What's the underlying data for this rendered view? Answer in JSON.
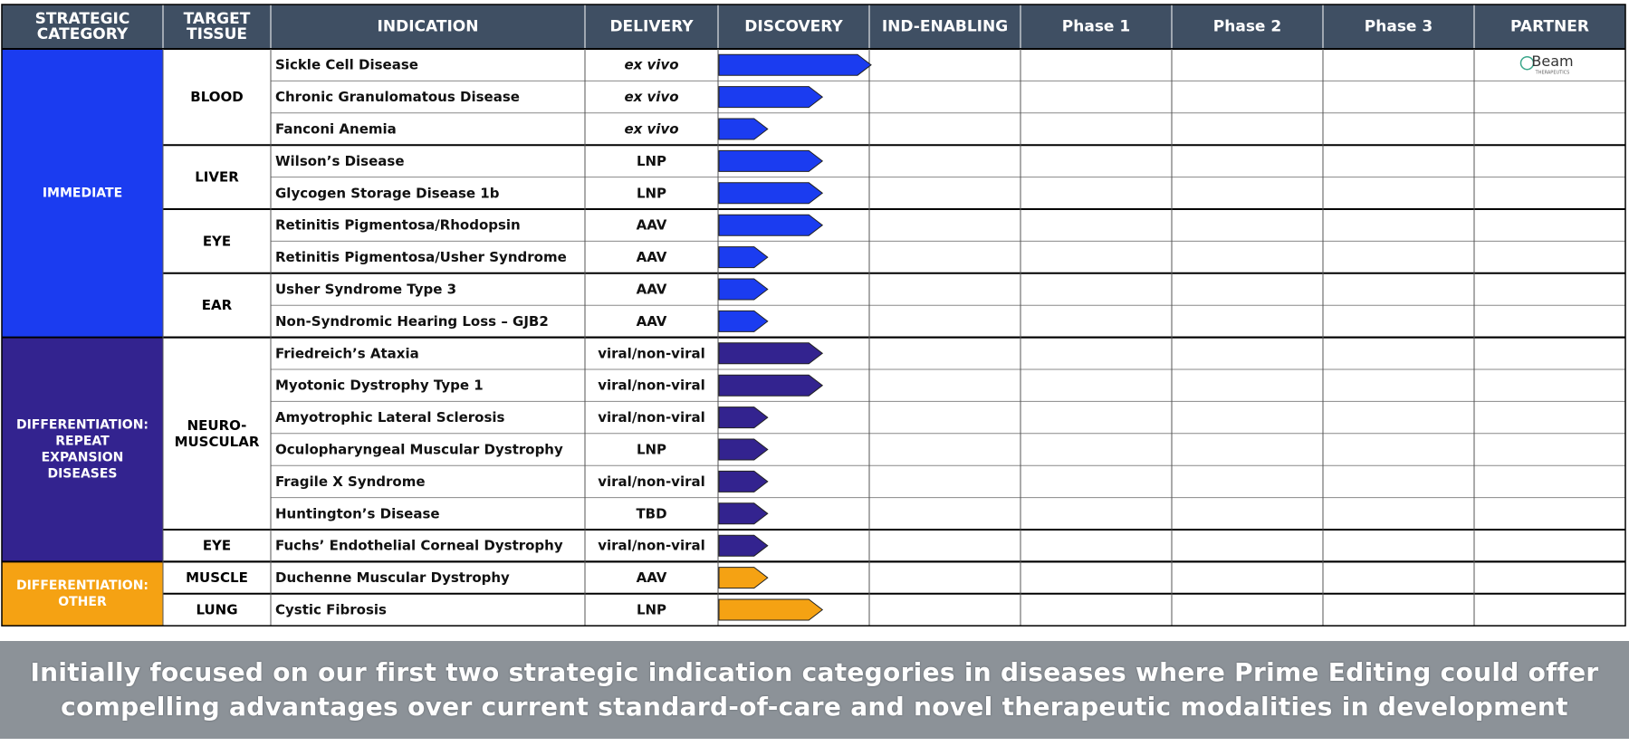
{
  "header": {
    "columns": [
      {
        "key": "category",
        "lines": [
          "STRATEGIC",
          "CATEGORY"
        ]
      },
      {
        "key": "tissue",
        "lines": [
          "TARGET",
          "TISSUE"
        ]
      },
      {
        "key": "indication",
        "lines": [
          "INDICATION"
        ]
      },
      {
        "key": "delivery",
        "lines": [
          "DELIVERY"
        ]
      },
      {
        "key": "discovery",
        "lines": [
          "DISCOVERY"
        ]
      },
      {
        "key": "ind_enabling",
        "lines": [
          "IND-ENABLING"
        ]
      },
      {
        "key": "phase1",
        "lines": [
          "Phase 1"
        ]
      },
      {
        "key": "phase2",
        "lines": [
          "Phase 2"
        ]
      },
      {
        "key": "phase3",
        "lines": [
          "Phase 3"
        ]
      },
      {
        "key": "partner",
        "lines": [
          "PARTNER"
        ]
      }
    ]
  },
  "colors": {
    "header_bg": "#3f4f63",
    "immediate": "#1b3cf0",
    "repeat_expansion": "#33238f",
    "other": "#f5a213",
    "grid": "#000000"
  },
  "categories": [
    {
      "name": "IMMEDIATE",
      "lines": [
        "IMMEDIATE"
      ],
      "color_key": "immediate",
      "rows": 9
    },
    {
      "name": "DIFFERENTIATION: REPEAT EXPANSION DISEASES",
      "lines": [
        "DIFFERENTIATION:",
        "REPEAT",
        "EXPANSION",
        "DISEASES"
      ],
      "color_key": "repeat_expansion",
      "rows": 7
    },
    {
      "name": "DIFFERENTIATION: OTHER",
      "lines": [
        "DIFFERENTIATION:",
        "OTHER"
      ],
      "color_key": "other",
      "rows": 2
    }
  ],
  "tissues": [
    {
      "lines": [
        "BLOOD"
      ],
      "rows": 3
    },
    {
      "lines": [
        "LIVER"
      ],
      "rows": 2
    },
    {
      "lines": [
        "EYE"
      ],
      "rows": 2
    },
    {
      "lines": [
        "EAR"
      ],
      "rows": 2
    },
    {
      "lines": [
        "NEURO-",
        "MUSCULAR"
      ],
      "rows": 6
    },
    {
      "lines": [
        "EYE"
      ],
      "rows": 1
    },
    {
      "lines": [
        "MUSCLE"
      ],
      "rows": 1
    },
    {
      "lines": [
        "LUNG"
      ],
      "rows": 1
    }
  ],
  "chart_data": {
    "type": "table",
    "stages": [
      "DISCOVERY",
      "IND-ENABLING",
      "Phase 1",
      "Phase 2",
      "Phase 3"
    ],
    "rows": [
      {
        "indication": "Sickle Cell Disease",
        "delivery": "ex vivo",
        "italic": true,
        "progress": 1.0,
        "category": "immediate",
        "partner": "Beam"
      },
      {
        "indication": "Chronic Granulomatous Disease",
        "delivery": "ex vivo",
        "italic": true,
        "progress": 0.68,
        "category": "immediate"
      },
      {
        "indication": "Fanconi Anemia",
        "delivery": "ex vivo",
        "italic": true,
        "progress": 0.32,
        "category": "immediate"
      },
      {
        "indication": "Wilson’s Disease",
        "delivery": "LNP",
        "progress": 0.68,
        "category": "immediate"
      },
      {
        "indication": "Glycogen Storage Disease 1b",
        "delivery": "LNP",
        "progress": 0.68,
        "category": "immediate"
      },
      {
        "indication": "Retinitis Pigmentosa/Rhodopsin",
        "delivery": "AAV",
        "progress": 0.68,
        "category": "immediate"
      },
      {
        "indication": "Retinitis Pigmentosa/Usher Syndrome",
        "delivery": "AAV",
        "progress": 0.32,
        "category": "immediate"
      },
      {
        "indication": "Usher Syndrome Type 3",
        "delivery": "AAV",
        "progress": 0.32,
        "category": "immediate"
      },
      {
        "indication": "Non-Syndromic Hearing Loss – GJB2",
        "delivery": "AAV",
        "progress": 0.32,
        "category": "immediate"
      },
      {
        "indication": "Friedreich’s Ataxia",
        "delivery": "viral/non-viral",
        "progress": 0.68,
        "category": "repeat_expansion"
      },
      {
        "indication": "Myotonic Dystrophy Type 1",
        "delivery": "viral/non-viral",
        "progress": 0.68,
        "category": "repeat_expansion"
      },
      {
        "indication": "Amyotrophic Lateral Sclerosis",
        "delivery": "viral/non-viral",
        "progress": 0.32,
        "category": "repeat_expansion"
      },
      {
        "indication": "Oculopharyngeal Muscular Dystrophy",
        "delivery": "LNP",
        "progress": 0.32,
        "category": "repeat_expansion"
      },
      {
        "indication": "Fragile X Syndrome",
        "delivery": "viral/non-viral",
        "progress": 0.32,
        "category": "repeat_expansion"
      },
      {
        "indication": "Huntington’s Disease",
        "delivery": "TBD",
        "progress": 0.32,
        "category": "repeat_expansion"
      },
      {
        "indication": "Fuchs’ Endothelial Corneal Dystrophy",
        "delivery": "viral/non-viral",
        "progress": 0.32,
        "category": "repeat_expansion"
      },
      {
        "indication": "Duchenne Muscular Dystrophy",
        "delivery": "AAV",
        "progress": 0.32,
        "category": "other"
      },
      {
        "indication": "Cystic Fibrosis",
        "delivery": "LNP",
        "progress": 0.68,
        "category": "other"
      }
    ]
  },
  "partner_logo": {
    "name": "Beam",
    "subtext": "THERAPEUTICS",
    "icon": "beam-logo"
  },
  "footer": {
    "line1": "Initially focused on our first two strategic indication categories in diseases where Prime Editing could offer",
    "line2": "compelling advantages over current standard-of-care and novel therapeutic modalities in development"
  }
}
